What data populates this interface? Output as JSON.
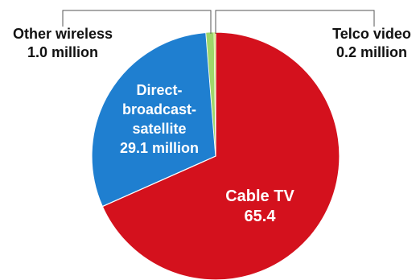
{
  "chart_data": {
    "type": "pie",
    "slices": [
      {
        "label": "Cable TV",
        "value_text": "65.4",
        "value": 65.4,
        "color": "#d4111d"
      },
      {
        "label": "Direct-broadcast-satellite",
        "value_text": "29.1 million",
        "value": 29.1,
        "color": "#1f7fd0"
      },
      {
        "label": "Other wireless",
        "value_text": "1.0 million",
        "value": 1.0,
        "color": "#9fd66a"
      },
      {
        "label": "Telco video",
        "value_text": "0.2 million",
        "value": 0.2,
        "color": "#c8e860"
      }
    ],
    "labels": {
      "cable": {
        "line1": "Cable TV",
        "line2": "65.4"
      },
      "dbs": {
        "line1": "Direct-",
        "line2": "broadcast-",
        "line3": "satellite",
        "line4": "29.1 million"
      },
      "other": {
        "line1": "Other wireless",
        "line2": "1.0 million"
      },
      "telco": {
        "line1": "Telco video",
        "line2": "0.2 million"
      }
    }
  }
}
